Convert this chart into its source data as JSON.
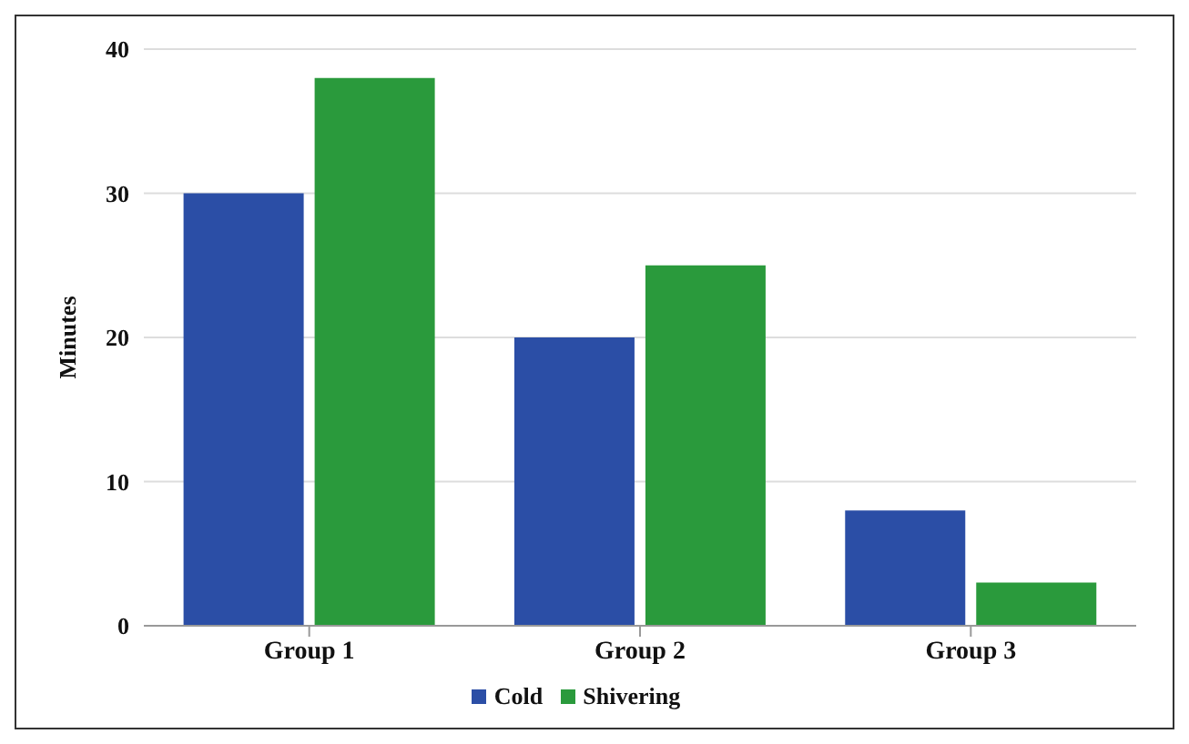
{
  "chart_data": {
    "type": "bar",
    "ylabel": "Minutes",
    "categories": [
      "Group 1",
      "Group 2",
      "Group 3"
    ],
    "series": [
      {
        "name": "Cold",
        "color": "#2b4ea6",
        "values": [
          30,
          20,
          8
        ]
      },
      {
        "name": "Shivering",
        "color": "#2a9a3c",
        "values": [
          38,
          25,
          3
        ]
      }
    ],
    "ylim": [
      0,
      40
    ],
    "yticks": [
      0,
      10,
      20,
      30,
      40
    ],
    "grid": "y",
    "legend": "bottom"
  }
}
